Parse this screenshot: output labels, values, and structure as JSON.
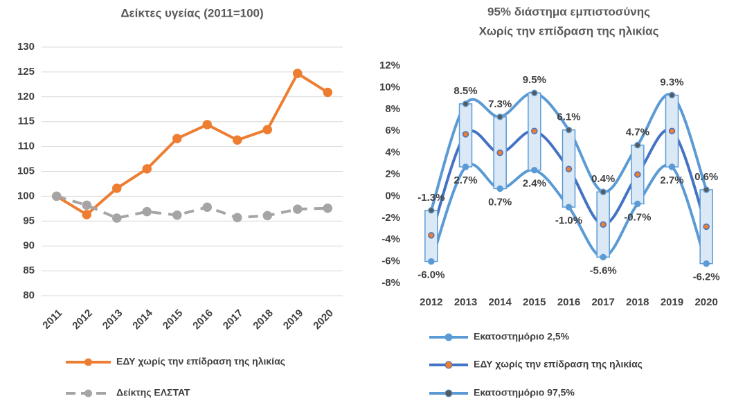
{
  "chart_data": [
    {
      "type": "line",
      "title": "Δείκτες υγείας (2011=100)",
      "categories": [
        "2011",
        "2012",
        "2013",
        "2014",
        "2015",
        "2016",
        "2017",
        "2018",
        "2019",
        "2020"
      ],
      "series": [
        {
          "name": "ΕΔΥ χωρίς την επίδραση της ηλικίας",
          "color": "#ed7d31",
          "dashed": false,
          "values": [
            100,
            96.3,
            101.6,
            105.5,
            111.6,
            114.4,
            111.3,
            113.4,
            124.7,
            120.9
          ]
        },
        {
          "name": "Δείκτης ΕΛΣΤΑΤ",
          "color": "#a5a5a5",
          "dashed": true,
          "values": [
            100,
            98.2,
            95.6,
            96.9,
            96.2,
            97.8,
            95.7,
            96.1,
            97.4,
            97.6
          ]
        }
      ],
      "ylim": [
        80,
        130
      ],
      "yticks": [
        80,
        85,
        90,
        95,
        100,
        105,
        110,
        115,
        120,
        125,
        130
      ],
      "grid": true,
      "smooth": false,
      "rotate_x_labels": true
    },
    {
      "type": "line",
      "title": [
        "95% διάστημα εμπιστοσύνης",
        "Χωρίς την επίδραση της ηλικίας"
      ],
      "categories": [
        "2012",
        "2013",
        "2014",
        "2015",
        "2016",
        "2017",
        "2018",
        "2019",
        "2020"
      ],
      "series": [
        {
          "name": "Εκατοστημόριο 2,5%",
          "color": "#5b9bd5",
          "marker_color": "#5b9bd5",
          "values": [
            -6.0,
            2.7,
            0.7,
            2.4,
            -1.0,
            -5.6,
            -0.7,
            2.7,
            -6.2
          ],
          "value_labels": [
            "-6.0%",
            "2.7%",
            "0.7%",
            "2.4%",
            "-1.0%",
            "-5.6%",
            "-0.7%",
            "2.7%",
            "-6.2%"
          ]
        },
        {
          "name": "ΕΔΥ χωρίς την επίδραση της ηλικίας",
          "color": "#4472c4",
          "marker_color": "#ed7d31",
          "values": [
            -3.6,
            5.7,
            4.0,
            6.0,
            2.5,
            -2.6,
            2.0,
            6.0,
            -2.8
          ]
        },
        {
          "name": "Εκατοστημόριο 97,5%",
          "color": "#5b9bd5",
          "marker_color": "#595959",
          "values": [
            -1.3,
            8.5,
            7.3,
            9.5,
            6.1,
            0.4,
            4.7,
            9.3,
            0.6
          ],
          "value_labels": [
            "-1.3%",
            "8.5%",
            "7.3%",
            "9.5%",
            "6.1%",
            "0.4%",
            "4.7%",
            "9.3%",
            "0.6%"
          ]
        }
      ],
      "ylim": [
        -8,
        12
      ],
      "yticks": [
        {
          "value": -8,
          "label": "-8%"
        },
        {
          "value": -6,
          "label": "-6%"
        },
        {
          "value": -4,
          "label": "-4%"
        },
        {
          "value": -2,
          "label": "-2%"
        },
        {
          "value": 0,
          "label": "0%"
        },
        {
          "value": 2,
          "label": "2%"
        },
        {
          "value": 4,
          "label": "4%"
        },
        {
          "value": 6,
          "label": "6%"
        },
        {
          "value": 8,
          "label": "8%"
        },
        {
          "value": 10,
          "label": "10%"
        },
        {
          "value": 12,
          "label": "12%"
        }
      ],
      "grid": false,
      "smooth": true,
      "rotate_x_labels": false,
      "updown_bars": {
        "fill": "#dbe8f6",
        "stroke": "#5b9bd5"
      }
    }
  ]
}
